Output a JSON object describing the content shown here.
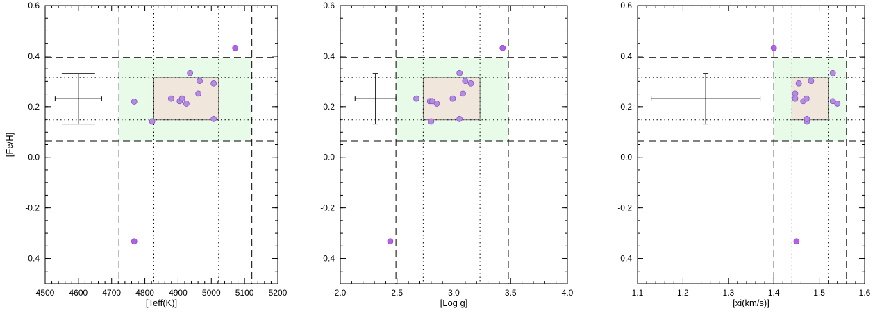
{
  "colors": {
    "outer_box": "#e8fbe8",
    "inner_box": "#f0e6dc",
    "point_fill": "#b98be0",
    "point_fill_outlier": "#b65ee8",
    "point_stroke": "#7a55c8"
  },
  "chart_data": [
    {
      "type": "scatter",
      "xlabel": "[Teff(K)]",
      "ylabel": "[Fe/H]",
      "xlim": [
        4500,
        5200
      ],
      "ylim": [
        -0.5,
        0.6
      ],
      "xticks": [
        "4500",
        "4600",
        "4700",
        "4800",
        "4900",
        "5000",
        "5100",
        "5200"
      ],
      "yticks": [
        "0.6",
        "0.4",
        "0.2",
        "0.0",
        "-0.2",
        "-0.4"
      ],
      "outer_box": {
        "x": [
          4722,
          5122
        ],
        "y": [
          0.065,
          0.395
        ]
      },
      "inner_box": {
        "x": [
          4827,
          5022
        ],
        "y": [
          0.148,
          0.315
        ]
      },
      "dashed_x": [
        4722,
        5122
      ],
      "dotted_x": [
        4827,
        5022
      ],
      "dashed_y": [
        0.065,
        0.395
      ],
      "dotted_y": [
        0.148,
        0.315
      ],
      "error_bar": {
        "x": 4600,
        "y": 0.232,
        "xerr": 70,
        "yerr": 0.1
      },
      "points": [
        {
          "x": 4768,
          "y": 0.22,
          "outlier": false
        },
        {
          "x": 4822,
          "y": 0.142,
          "outlier": false
        },
        {
          "x": 4879,
          "y": 0.232,
          "outlier": false
        },
        {
          "x": 4905,
          "y": 0.222,
          "outlier": false
        },
        {
          "x": 4912,
          "y": 0.232,
          "outlier": false
        },
        {
          "x": 4925,
          "y": 0.212,
          "outlier": false
        },
        {
          "x": 4936,
          "y": 0.333,
          "outlier": false
        },
        {
          "x": 4961,
          "y": 0.252,
          "outlier": false
        },
        {
          "x": 4965,
          "y": 0.302,
          "outlier": false
        },
        {
          "x": 5007,
          "y": 0.292,
          "outlier": false
        },
        {
          "x": 5007,
          "y": 0.152,
          "outlier": false
        },
        {
          "x": 5072,
          "y": 0.432,
          "outlier": true
        },
        {
          "x": 4768,
          "y": -0.332,
          "outlier": true
        }
      ]
    },
    {
      "type": "scatter",
      "xlabel": "[Log g]",
      "ylabel": "",
      "xlim": [
        2.0,
        4.0
      ],
      "ylim": [
        -0.5,
        0.6
      ],
      "xticks": [
        "2.0",
        "2.5",
        "3.0",
        "3.5",
        "4.0"
      ],
      "yticks": [
        "0.6",
        "0.4",
        "0.2",
        "0.0",
        "-0.2",
        "-0.4"
      ],
      "outer_box": {
        "x": [
          2.49,
          3.48
        ],
        "y": [
          0.065,
          0.395
        ]
      },
      "inner_box": {
        "x": [
          2.73,
          3.23
        ],
        "y": [
          0.148,
          0.315
        ]
      },
      "dashed_x": [
        2.49,
        3.48
      ],
      "dotted_x": [
        2.73,
        3.23
      ],
      "dashed_y": [
        0.065,
        0.395
      ],
      "dotted_y": [
        0.148,
        0.315
      ],
      "error_bar": {
        "x": 2.31,
        "y": 0.232,
        "xerr": 0.18,
        "yerr": 0.1
      },
      "points": [
        {
          "x": 2.67,
          "y": 0.232,
          "outlier": false
        },
        {
          "x": 2.79,
          "y": 0.222,
          "outlier": false
        },
        {
          "x": 2.81,
          "y": 0.222,
          "outlier": false
        },
        {
          "x": 2.85,
          "y": 0.212,
          "outlier": false
        },
        {
          "x": 2.8,
          "y": 0.142,
          "outlier": false
        },
        {
          "x": 2.99,
          "y": 0.232,
          "outlier": false
        },
        {
          "x": 3.05,
          "y": 0.152,
          "outlier": false
        },
        {
          "x": 3.05,
          "y": 0.333,
          "outlier": false
        },
        {
          "x": 3.08,
          "y": 0.252,
          "outlier": false
        },
        {
          "x": 3.1,
          "y": 0.302,
          "outlier": false
        },
        {
          "x": 3.15,
          "y": 0.292,
          "outlier": false
        },
        {
          "x": 3.43,
          "y": 0.432,
          "outlier": true
        },
        {
          "x": 2.44,
          "y": -0.332,
          "outlier": true
        }
      ]
    },
    {
      "type": "scatter",
      "xlabel": "[xi(km/s)]",
      "ylabel": "",
      "xlim": [
        1.1,
        1.6
      ],
      "ylim": [
        -0.5,
        0.6
      ],
      "xticks": [
        "1.1",
        "1.2",
        "1.3",
        "1.4",
        "1.5",
        "1.6"
      ],
      "yticks": [
        "0.6",
        "0.4",
        "0.2",
        "0.0",
        "-0.2",
        "-0.4"
      ],
      "outer_box": {
        "x": [
          1.4,
          1.56
        ],
        "y": [
          0.065,
          0.395
        ]
      },
      "inner_box": {
        "x": [
          1.44,
          1.52
        ],
        "y": [
          0.148,
          0.315
        ]
      },
      "dashed_x": [
        1.4,
        1.56
      ],
      "dotted_x": [
        1.44,
        1.52
      ],
      "dashed_y": [
        0.065,
        0.395
      ],
      "dotted_y": [
        0.148,
        0.315
      ],
      "error_bar": {
        "x": 1.25,
        "y": 0.232,
        "xerr": 0.12,
        "yerr": 0.1
      },
      "points": [
        {
          "x": 1.447,
          "y": 0.252,
          "outlier": false
        },
        {
          "x": 1.447,
          "y": 0.232,
          "outlier": false
        },
        {
          "x": 1.455,
          "y": 0.292,
          "outlier": false
        },
        {
          "x": 1.465,
          "y": 0.222,
          "outlier": false
        },
        {
          "x": 1.472,
          "y": 0.232,
          "outlier": false
        },
        {
          "x": 1.473,
          "y": 0.142,
          "outlier": false
        },
        {
          "x": 1.473,
          "y": 0.152,
          "outlier": false
        },
        {
          "x": 1.482,
          "y": 0.302,
          "outlier": false
        },
        {
          "x": 1.53,
          "y": 0.333,
          "outlier": false
        },
        {
          "x": 1.53,
          "y": 0.222,
          "outlier": false
        },
        {
          "x": 1.54,
          "y": 0.212,
          "outlier": false
        },
        {
          "x": 1.4,
          "y": 0.432,
          "outlier": true
        },
        {
          "x": 1.45,
          "y": -0.332,
          "outlier": true
        }
      ]
    }
  ]
}
